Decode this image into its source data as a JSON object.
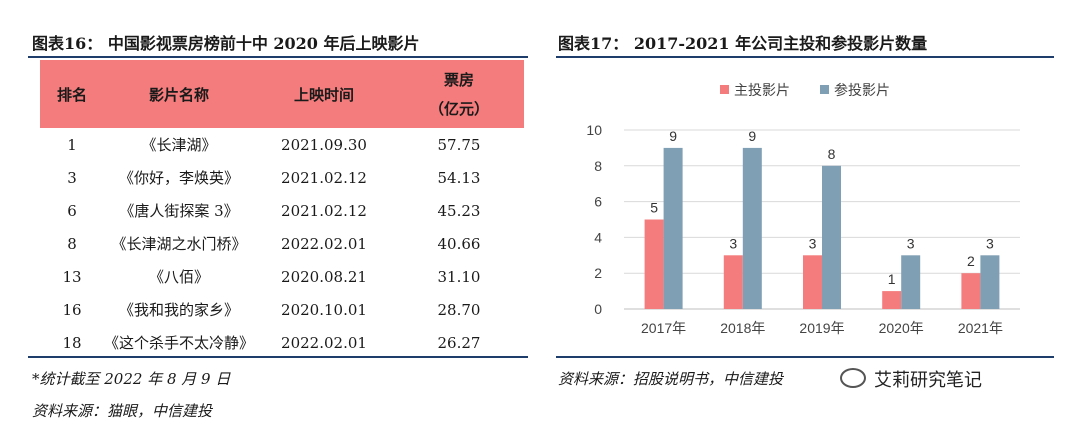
{
  "left": {
    "title": "图表16：  中国影视票房榜前十中 2020 年后上映影片",
    "headers": [
      "排名",
      "影片名称",
      "上映时间"
    ],
    "header_box": [
      "票房",
      "（亿元）"
    ],
    "rows": [
      {
        "rank": "1",
        "name": "《长津湖》",
        "date": "2021.09.30",
        "box": "57.75"
      },
      {
        "rank": "3",
        "name": "《你好，李焕英》",
        "date": "2021.02.12",
        "box": "54.13"
      },
      {
        "rank": "6",
        "name": "《唐人街探案 3》",
        "date": "2021.02.12",
        "box": "45.23"
      },
      {
        "rank": "8",
        "name": "《长津湖之水门桥》",
        "date": "2022.02.01",
        "box": "40.66"
      },
      {
        "rank": "13",
        "name": "《八佰》",
        "date": "2020.08.21",
        "box": "31.10"
      },
      {
        "rank": "16",
        "name": "《我和我的家乡》",
        "date": "2020.10.01",
        "box": "28.70"
      },
      {
        "rank": "18",
        "name": "《这个杀手不太冷静》",
        "date": "2022.02.01",
        "box": "26.27"
      }
    ],
    "note": "*统计截至 2022 年 8 月 9 日",
    "source": "资料来源：猫眼，中信建投"
  },
  "right": {
    "title": "图表17：  2017-2021 年公司主投和参投影片数量",
    "source": "资料来源：招股说明书，中信建投"
  },
  "watermark": "艾莉研究笔记",
  "colors": {
    "lead": "#f47c7c",
    "part": "#7f9fb5",
    "rule": "#1f3d6b"
  },
  "chart_data": {
    "type": "bar",
    "categories": [
      "2017年",
      "2018年",
      "2019年",
      "2020年",
      "2021年"
    ],
    "series": [
      {
        "name": "主投影片",
        "values": [
          5,
          3,
          3,
          1,
          2
        ]
      },
      {
        "name": "参投影片",
        "values": [
          9,
          9,
          8,
          3,
          3
        ]
      }
    ],
    "yticks": [
      "0",
      "2",
      "4",
      "6",
      "8",
      "10"
    ],
    "ylim": [
      0,
      10
    ],
    "legend": "top"
  }
}
